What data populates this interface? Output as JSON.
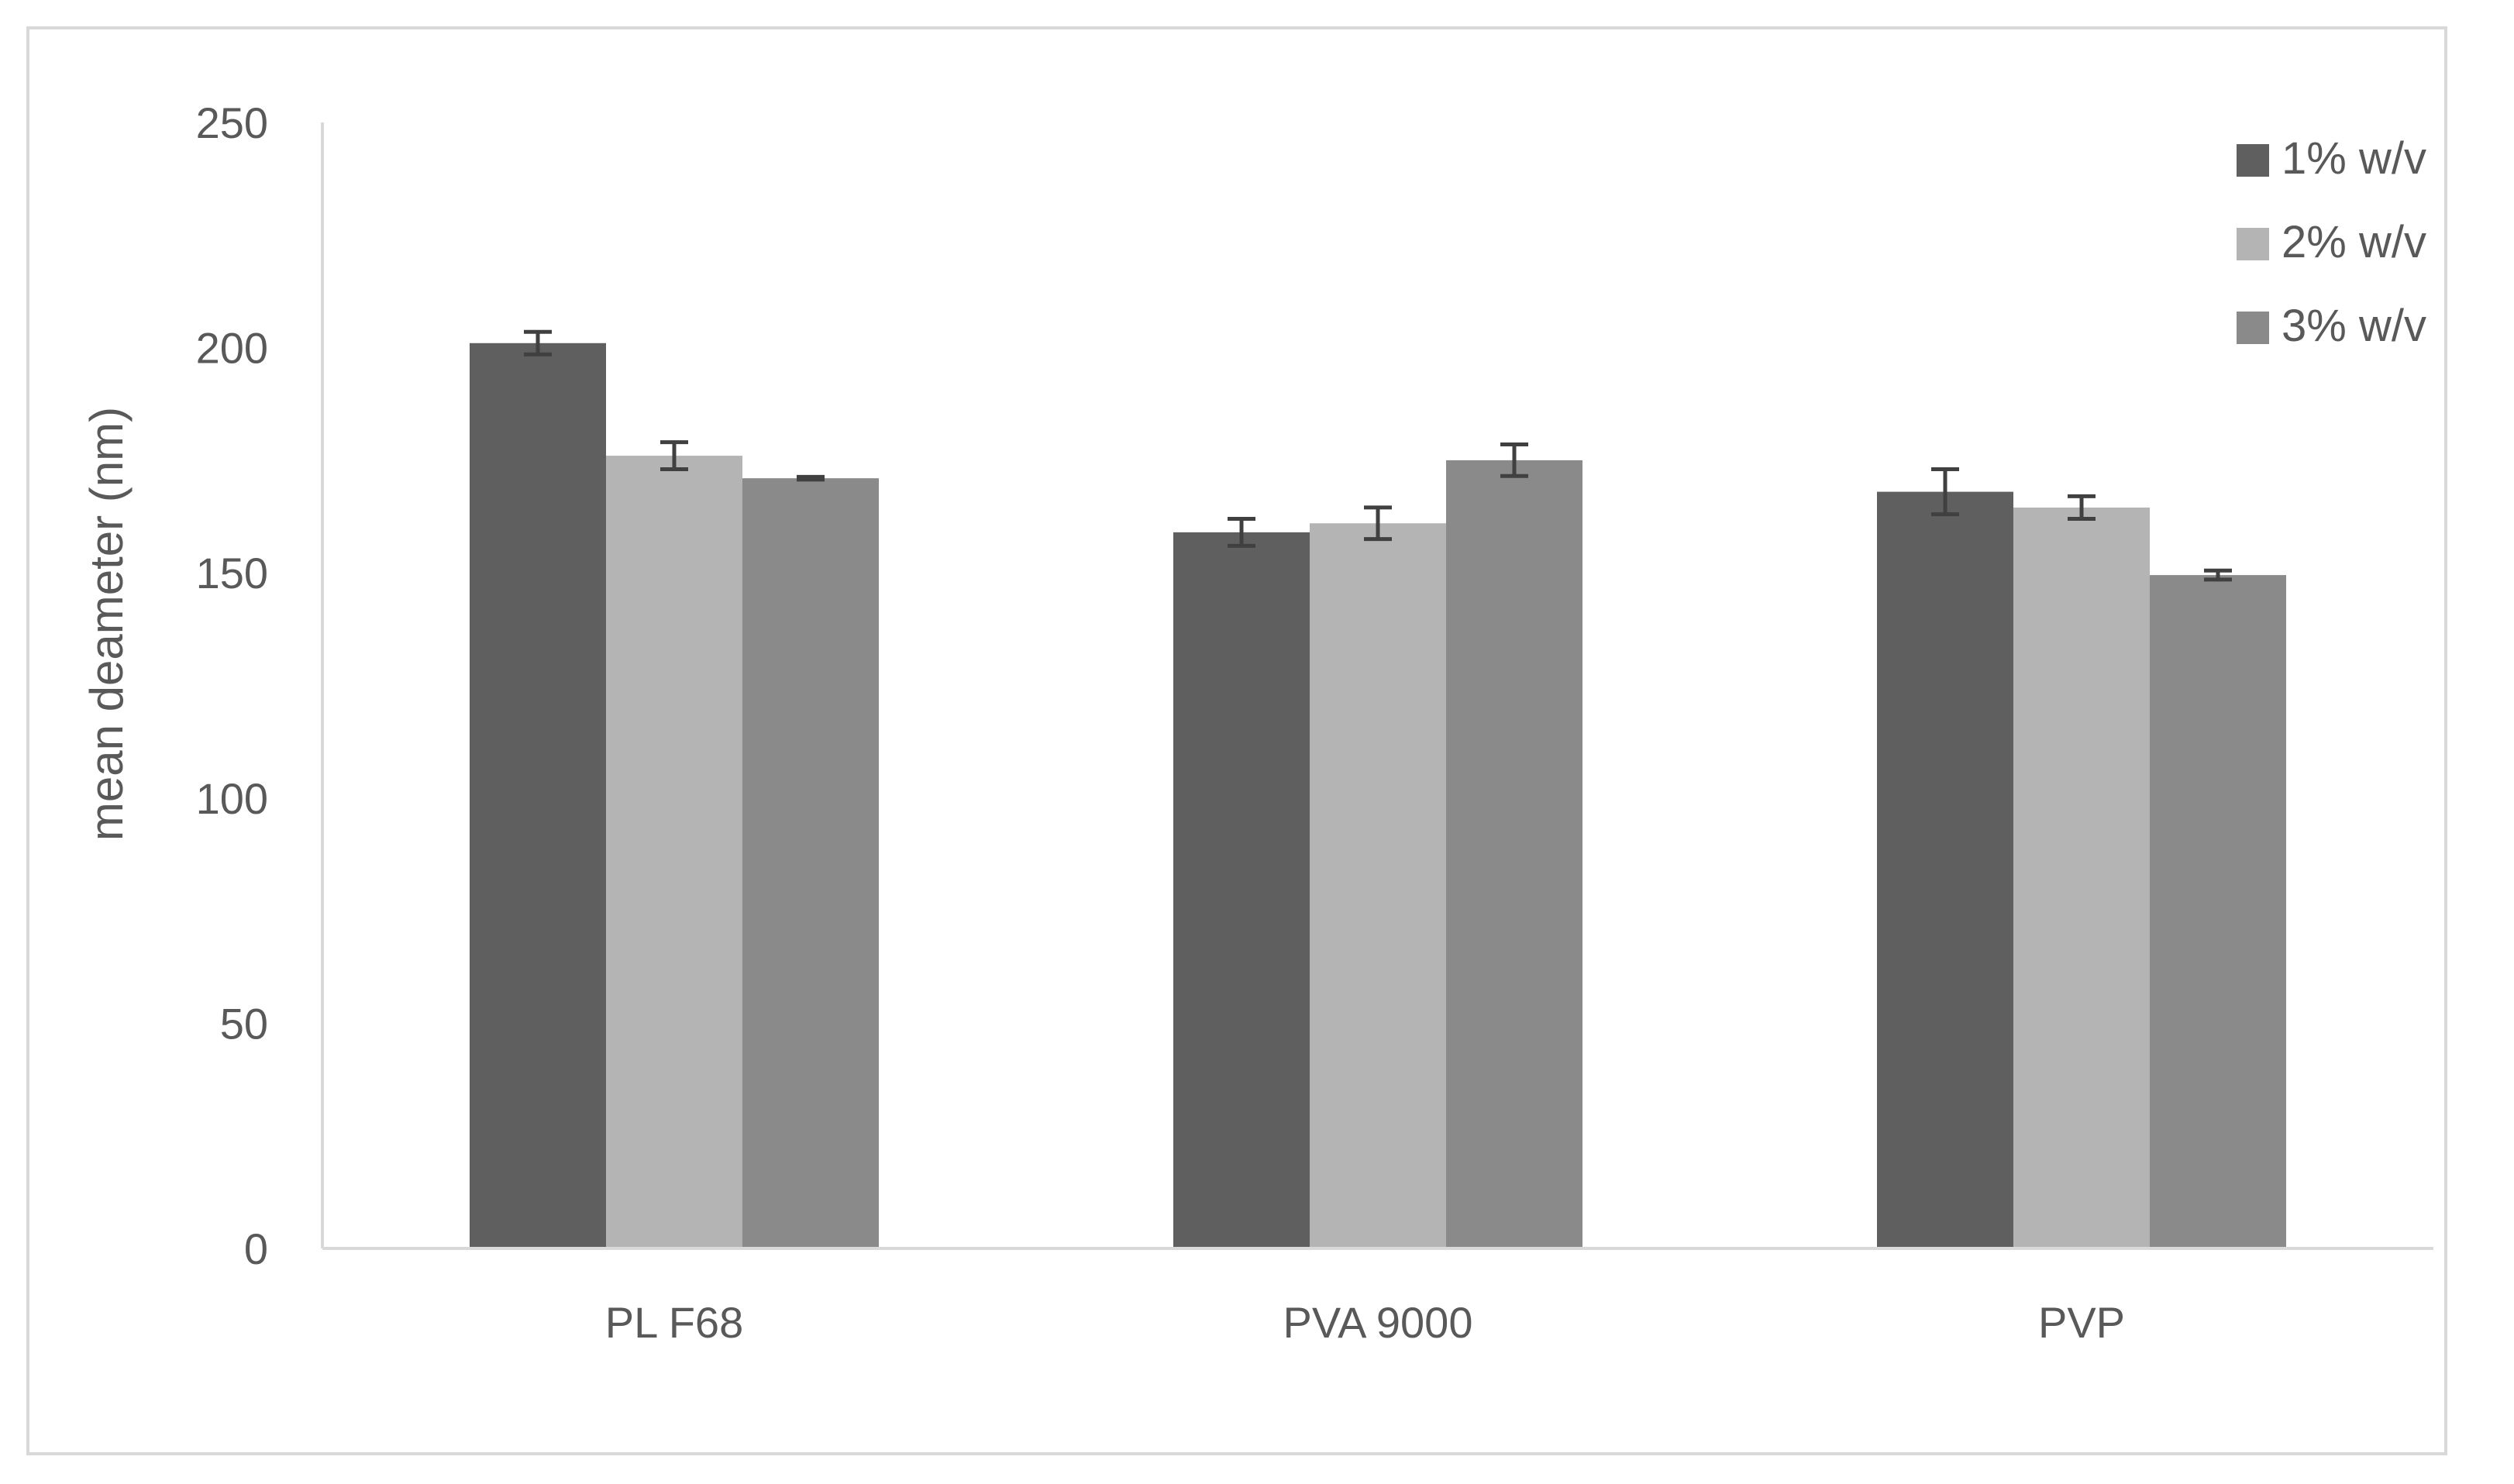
{
  "chart_data": {
    "type": "bar",
    "title": "",
    "xlabel": "",
    "ylabel": "mean deameter (nm)",
    "ylim": [
      0,
      250
    ],
    "yticks": [
      "0",
      "50",
      "100",
      "150",
      "200",
      "250"
    ],
    "grid": false,
    "legend_position": "top-right",
    "categories": [
      "PL F68",
      "PVA 9000",
      "PVP"
    ],
    "series": [
      {
        "name": "1% w/v",
        "color": "#5f5f5f",
        "values": [
          201,
          159,
          168
        ],
        "errors": [
          2.5,
          3,
          5
        ]
      },
      {
        "name": "2% w/v",
        "color": "#b4b4b4",
        "values": [
          176,
          161,
          164.5
        ],
        "errors": [
          3,
          3.5,
          2.5
        ]
      },
      {
        "name": "3% w/v",
        "color": "#8a8a8a",
        "values": [
          171,
          175,
          149.5
        ],
        "errors": [
          0.3,
          3.5,
          1
        ]
      }
    ]
  }
}
